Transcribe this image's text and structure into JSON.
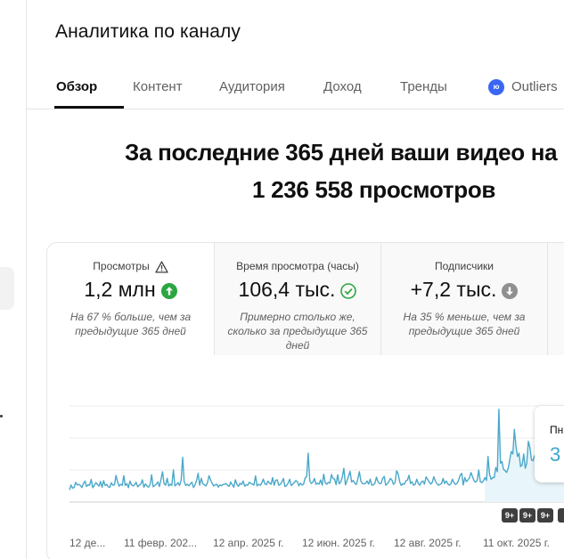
{
  "page": {
    "title": "Аналитика по каналу"
  },
  "tabs": [
    {
      "label": "Обзор",
      "active": true
    },
    {
      "label": "Контент"
    },
    {
      "label": "Аудитория"
    },
    {
      "label": "Доход"
    },
    {
      "label": "Тренды"
    },
    {
      "label": "Outliers",
      "badge_icon": "outliers-extension-icon"
    }
  ],
  "headline": {
    "line1": "За последние 365 дней ваши видео на",
    "line2": "1 236 558 просмотров"
  },
  "metrics": [
    {
      "label": "Просмотры",
      "label_icon": "warning-triangle-icon",
      "value": "1,2 млн",
      "trend_icon": "arrow-up-circle-icon",
      "note": "На 67 % больше, чем за предыдущие 365 дней"
    },
    {
      "label": "Время просмотра (часы)",
      "value": "106,4 тыс.",
      "trend_icon": "check-circle-icon",
      "note": "Примерно столько же, сколько за предыдущие 365 дней"
    },
    {
      "label": "Подписчики",
      "value": "+7,2 тыс.",
      "trend_icon": "arrow-down-circle-icon",
      "note": "На 35 % меньше, чем за предыдущие 365 дней"
    }
  ],
  "tooltip": {
    "title": "Пн",
    "value": "3"
  },
  "badges": [
    "9+",
    "9+",
    "9+"
  ],
  "colors": {
    "line": "#4aa8c9",
    "fill": "#e8f5fa",
    "up": "#2ba640",
    "neutral": "#909090",
    "accent": "#3ea6c8"
  },
  "chart_data": {
    "type": "line",
    "x_ticks": [
      "12 де...",
      "11 февр. 202...",
      "12 апр. 2025 г.",
      "12 июн. 2025 г.",
      "12 авг. 2025 г.",
      "11 окт. 2025 г."
    ],
    "series": [
      {
        "values": [
          720,
          1010,
          820,
          870,
          1170,
          1010,
          1050,
          980,
          860,
          1100,
          1240,
          920,
          1030,
          990,
          1340,
          850,
          990,
          1150,
          1050,
          940,
          1220,
          880,
          1260,
          980,
          1050,
          900,
          870,
          1140,
          1000,
          1020,
          1580,
          1200,
          940,
          1050,
          990,
          1560,
          980,
          1100,
          850,
          1240,
          1020,
          950,
          1030,
          1170,
          900,
          1000,
          1060,
          1320,
          880,
          1070,
          950,
          880,
          1040,
          1620,
          900,
          990,
          1050,
          1200,
          920,
          1320,
          1800,
          1100,
          1000,
          1410,
          950,
          1060,
          980,
          1900,
          960,
          1040,
          1150,
          980,
          1300,
          2650,
          1200,
          980,
          1050,
          960,
          1080,
          1170,
          860,
          1020,
          1300,
          1700,
          1000,
          1410,
          1090,
          1020,
          950,
          1140,
          1560,
          1320,
          1110,
          950,
          1020,
          1050,
          880,
          1020,
          960,
          1040,
          1050,
          1100,
          990,
          930,
          1190,
          1020,
          880,
          1320,
          1050,
          930,
          1110,
          1040,
          1250,
          940,
          1020,
          1000,
          1170,
          1100,
          1060,
          1010,
          1550,
          960,
          1050,
          990,
          1120,
          1360,
          1080,
          1030,
          1240,
          1130,
          1050,
          1450,
          1000,
          1280,
          1320,
          990,
          1050,
          1190,
          1400,
          920,
          980,
          1110,
          1350,
          980,
          1050,
          1160,
          1270,
          1200,
          960,
          1120,
          1010,
          1060,
          1430,
          1500,
          2900,
          1250,
          1100,
          1180,
          1400,
          1050,
          1120,
          1060,
          1310,
          1000,
          1650,
          1120,
          1060,
          1170,
          1120,
          1630,
          1400,
          1360,
          1030,
          1620,
          1080,
          1200,
          1480,
          2000,
          1020,
          1260,
          1530,
          1820,
          1190,
          1280,
          1120,
          1040,
          1370,
          1800,
          1230,
          1100,
          1070,
          1110,
          1250,
          1060,
          1360,
          1000,
          1020,
          1100,
          1480,
          1200,
          1090,
          1100,
          1400,
          1520,
          1000,
          1080,
          1210,
          1400,
          1300,
          1050,
          1150,
          1850,
          1700,
          1200,
          980,
          1100,
          1050,
          1260,
          1300,
          1590,
          1100,
          1200,
          1000,
          1050,
          1350,
          1090,
          1000,
          1190,
          1250,
          1060,
          1490,
          1350,
          1200,
          1060,
          1160,
          1500,
          1250,
          1100,
          1000,
          1050,
          1090,
          1400,
          1100,
          1250,
          1080,
          1000,
          1080,
          1350,
          1150,
          1050,
          1110,
          1300,
          1580,
          1700,
          1010,
          1450,
          1210,
          1300,
          1430,
          1750,
          1500,
          1260,
          1170,
          1300,
          1900,
          1200,
          1150,
          1250,
          1450,
          1280,
          2700,
          1640,
          1350,
          1450,
          1450,
          2050,
          1800,
          5500,
          2300,
          2400,
          1950,
          1850,
          1760,
          2000,
          2500,
          3000,
          2850,
          4300,
          3300,
          2700,
          2900,
          2100,
          2200,
          2850,
          2000,
          2300,
          3600,
          3250,
          2500,
          2450,
          2750,
          2480,
          4200,
          2550,
          2100,
          2850,
          3100,
          2800,
          2600,
          4300,
          3400,
          2900,
          2500,
          2350,
          2900,
          2300,
          2150,
          2500,
          2200,
          2600
        ]
      }
    ],
    "ymin": 0
  }
}
